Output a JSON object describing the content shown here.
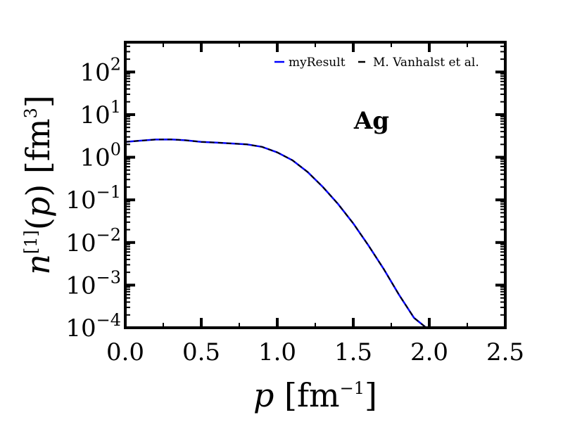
{
  "chart_data": {
    "type": "line",
    "xlabel": "p [fm^-1]",
    "ylabel": "n^[1](p) [fm^3]",
    "xscale": "linear",
    "yscale": "log",
    "xlim": [
      0.0,
      2.5
    ],
    "ylim": [
      0.0001,
      500
    ],
    "x_ticks": [
      0.0,
      0.5,
      1.0,
      1.5,
      2.0,
      2.5
    ],
    "x_tick_labels": [
      "0.0",
      "0.5",
      "1.0",
      "1.5",
      "2.0",
      "2.5"
    ],
    "y_ticks": [
      {
        "value": 100,
        "base": "10",
        "exp": "2"
      },
      {
        "value": 10,
        "base": "10",
        "exp": "1"
      },
      {
        "value": 1,
        "base": "10",
        "exp": "0"
      },
      {
        "value": 0.1,
        "base": "10",
        "exp": "−1"
      },
      {
        "value": 0.01,
        "base": "10",
        "exp": "−2"
      },
      {
        "value": 0.001,
        "base": "10",
        "exp": "−3"
      },
      {
        "value": 0.0001,
        "base": "10",
        "exp": "−4"
      }
    ],
    "annotation": "Ag",
    "legend_position": "top-right",
    "grid": false,
    "series": [
      {
        "name": "myResult",
        "color": "#0000ff",
        "style": "solid",
        "x": [
          0.0,
          0.1,
          0.2,
          0.3,
          0.4,
          0.5,
          0.6,
          0.7,
          0.8,
          0.9,
          1.0,
          1.1,
          1.2,
          1.3,
          1.4,
          1.5,
          1.6,
          1.7,
          1.8,
          1.9,
          1.98
        ],
        "y": [
          2.3,
          2.45,
          2.6,
          2.62,
          2.5,
          2.3,
          2.2,
          2.1,
          2.0,
          1.75,
          1.3,
          0.85,
          0.45,
          0.2,
          0.08,
          0.028,
          0.0085,
          0.0024,
          0.0006,
          0.00017,
          0.0001
        ]
      },
      {
        "name": "M. Vanhalst et al.",
        "color": "#000000",
        "style": "dashed",
        "x": [
          0.0,
          0.1,
          0.2,
          0.3,
          0.4,
          0.5,
          0.6,
          0.7,
          0.8,
          0.9,
          1.0,
          1.1,
          1.2,
          1.3,
          1.4,
          1.5,
          1.6,
          1.7,
          1.8,
          1.9,
          1.98
        ],
        "y": [
          2.3,
          2.45,
          2.6,
          2.62,
          2.5,
          2.3,
          2.2,
          2.1,
          2.0,
          1.75,
          1.3,
          0.85,
          0.45,
          0.2,
          0.08,
          0.028,
          0.0085,
          0.0024,
          0.0006,
          0.00017,
          0.0001
        ]
      }
    ]
  }
}
